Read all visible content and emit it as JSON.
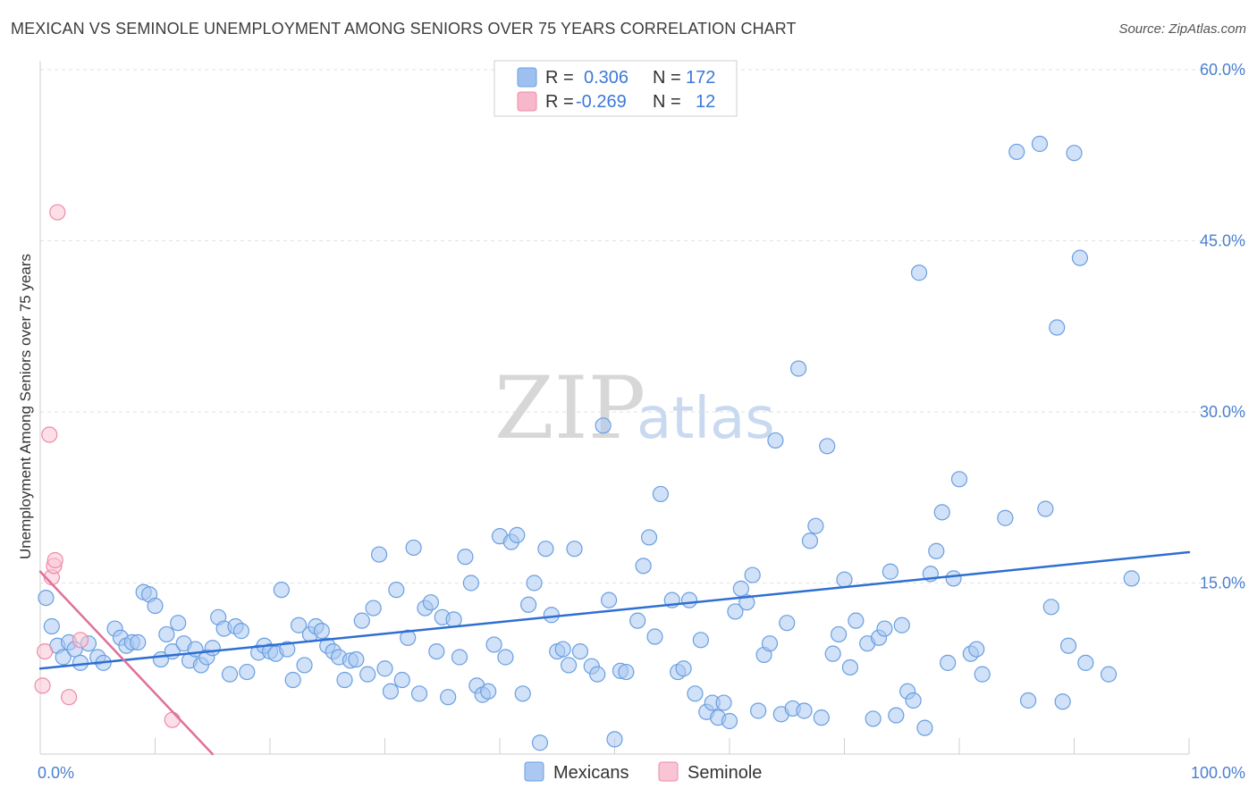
{
  "header": {
    "title": "MEXICAN VS SEMINOLE UNEMPLOYMENT AMONG SENIORS OVER 75 YEARS CORRELATION CHART",
    "source": "Source: ZipAtlas.com"
  },
  "watermark": {
    "zip": "ZIP",
    "atlas": "atlas"
  },
  "legend_box": {
    "rows": [
      {
        "r_label": "R =",
        "r_value": "0.306",
        "n_label": "N =",
        "n_value": "172",
        "color": "#9dc0f0"
      },
      {
        "r_label": "R =",
        "r_value": "-0.269",
        "n_label": "N =",
        "n_value": "12",
        "color": "#f7b8cb"
      }
    ]
  },
  "colors": {
    "mexicans_fill": "#aac8f2",
    "mexicans_stroke": "#6a9fe0",
    "mexicans_line": "#2e6fd1",
    "seminole_fill": "#f9c4d4",
    "seminole_stroke": "#ee8aa8",
    "seminole_line": "#e0709a"
  },
  "chart_data": {
    "type": "scatter",
    "title": "MEXICAN VS SEMINOLE UNEMPLOYMENT AMONG SENIORS OVER 75 YEARS CORRELATION CHART",
    "xlabel": "",
    "ylabel": "Unemployment Among Seniors over 75 years",
    "xlim": [
      0,
      100
    ],
    "ylim": [
      0,
      60
    ],
    "x_tick_labels": [
      "0.0%",
      "100.0%"
    ],
    "y_ticks": [
      15,
      30,
      45,
      60
    ],
    "y_tick_labels": [
      "15.0%",
      "30.0%",
      "45.0%",
      "60.0%"
    ],
    "grid": true,
    "legend_position": "bottom-center",
    "series": [
      {
        "name": "Mexicans",
        "trend": {
          "x": [
            0,
            100
          ],
          "y": [
            7.5,
            17.7
          ]
        },
        "points": [
          [
            0.5,
            13.7
          ],
          [
            1,
            11.2
          ],
          [
            1.5,
            9.5
          ],
          [
            2,
            8.5
          ],
          [
            2.5,
            9.8
          ],
          [
            3,
            9.2
          ],
          [
            3.5,
            8
          ],
          [
            4.2,
            9.7
          ],
          [
            5,
            8.5
          ],
          [
            5.5,
            8
          ],
          [
            6.5,
            11
          ],
          [
            7,
            10.2
          ],
          [
            7.5,
            9.5
          ],
          [
            8,
            9.8
          ],
          [
            8.5,
            9.8
          ],
          [
            9,
            14.2
          ],
          [
            9.5,
            14
          ],
          [
            10,
            13
          ],
          [
            10.5,
            8.3
          ],
          [
            11,
            10.5
          ],
          [
            11.5,
            9
          ],
          [
            12,
            11.5
          ],
          [
            12.5,
            9.7
          ],
          [
            13,
            8.2
          ],
          [
            13.5,
            9.2
          ],
          [
            14,
            7.8
          ],
          [
            14.5,
            8.5
          ],
          [
            15,
            9.3
          ],
          [
            15.5,
            12
          ],
          [
            16,
            11
          ],
          [
            16.5,
            7
          ],
          [
            17,
            11.2
          ],
          [
            17.5,
            10.8
          ],
          [
            18,
            7.2
          ],
          [
            19,
            8.9
          ],
          [
            19.5,
            9.5
          ],
          [
            20,
            9
          ],
          [
            20.5,
            8.8
          ],
          [
            21,
            14.4
          ],
          [
            21.5,
            9.2
          ],
          [
            22,
            6.5
          ],
          [
            22.5,
            11.3
          ],
          [
            23,
            7.8
          ],
          [
            23.5,
            10.5
          ],
          [
            24,
            11.2
          ],
          [
            24.5,
            10.8
          ],
          [
            25,
            9.5
          ],
          [
            25.5,
            9
          ],
          [
            26,
            8.5
          ],
          [
            26.5,
            6.5
          ],
          [
            27,
            8.2
          ],
          [
            27.5,
            8.3
          ],
          [
            28,
            11.7
          ],
          [
            28.5,
            7
          ],
          [
            29,
            12.8
          ],
          [
            29.5,
            17.5
          ],
          [
            30,
            7.5
          ],
          [
            30.5,
            5.5
          ],
          [
            31,
            14.4
          ],
          [
            31.5,
            6.5
          ],
          [
            32,
            10.2
          ],
          [
            32.5,
            18.1
          ],
          [
            33,
            5.3
          ],
          [
            33.5,
            12.8
          ],
          [
            34,
            13.3
          ],
          [
            34.5,
            9
          ],
          [
            35,
            12
          ],
          [
            35.5,
            5
          ],
          [
            36,
            11.8
          ],
          [
            36.5,
            8.5
          ],
          [
            37,
            17.3
          ],
          [
            37.5,
            15
          ],
          [
            38,
            6
          ],
          [
            38.5,
            5.2
          ],
          [
            39,
            5.5
          ],
          [
            39.5,
            9.6
          ],
          [
            40,
            19.1
          ],
          [
            40.5,
            8.5
          ],
          [
            41,
            18.6
          ],
          [
            41.5,
            19.2
          ],
          [
            42,
            5.3
          ],
          [
            42.5,
            13.1
          ],
          [
            43,
            15
          ],
          [
            43.5,
            1
          ],
          [
            44,
            18
          ],
          [
            44.5,
            12.2
          ],
          [
            45,
            9
          ],
          [
            45.5,
            9.2
          ],
          [
            46,
            7.8
          ],
          [
            46.5,
            18
          ],
          [
            47,
            9
          ],
          [
            48,
            7.7
          ],
          [
            48.5,
            7
          ],
          [
            49,
            28.8
          ],
          [
            49.5,
            13.5
          ],
          [
            50,
            1.3
          ],
          [
            50.5,
            7.3
          ],
          [
            51,
            7.2
          ],
          [
            52,
            11.7
          ],
          [
            52.5,
            16.5
          ],
          [
            53,
            19
          ],
          [
            53.5,
            10.3
          ],
          [
            54,
            22.8
          ],
          [
            55,
            13.5
          ],
          [
            55.5,
            7.2
          ],
          [
            56,
            7.5
          ],
          [
            56.5,
            13.5
          ],
          [
            57,
            5.3
          ],
          [
            57.5,
            10
          ],
          [
            58,
            3.7
          ],
          [
            58.5,
            4.5
          ],
          [
            59,
            3.2
          ],
          [
            59.5,
            4.5
          ],
          [
            60,
            2.9
          ],
          [
            60.5,
            12.5
          ],
          [
            61,
            14.5
          ],
          [
            61.5,
            13.3
          ],
          [
            62,
            15.7
          ],
          [
            62.5,
            3.8
          ],
          [
            63,
            8.7
          ],
          [
            63.5,
            9.7
          ],
          [
            64,
            27.5
          ],
          [
            64.5,
            3.5
          ],
          [
            65,
            11.5
          ],
          [
            65.5,
            4
          ],
          [
            66,
            33.8
          ],
          [
            66.5,
            3.8
          ],
          [
            67,
            18.7
          ],
          [
            67.5,
            20
          ],
          [
            68,
            3.2
          ],
          [
            68.5,
            27
          ],
          [
            69,
            8.8
          ],
          [
            69.5,
            10.5
          ],
          [
            70,
            15.3
          ],
          [
            70.5,
            7.6
          ],
          [
            71,
            11.7
          ],
          [
            72,
            9.7
          ],
          [
            72.5,
            3.1
          ],
          [
            73,
            10.2
          ],
          [
            73.5,
            11
          ],
          [
            74,
            16
          ],
          [
            74.5,
            3.4
          ],
          [
            75,
            11.3
          ],
          [
            75.5,
            5.5
          ],
          [
            76,
            4.7
          ],
          [
            76.5,
            42.2
          ],
          [
            77,
            2.3
          ],
          [
            77.5,
            15.8
          ],
          [
            78,
            17.8
          ],
          [
            78.5,
            21.2
          ],
          [
            79,
            8
          ],
          [
            79.5,
            15.4
          ],
          [
            80,
            24.1
          ],
          [
            81,
            8.8
          ],
          [
            81.5,
            9.2
          ],
          [
            82,
            7
          ],
          [
            84,
            20.7
          ],
          [
            85,
            52.8
          ],
          [
            86,
            4.7
          ],
          [
            87,
            53.5
          ],
          [
            87.5,
            21.5
          ],
          [
            88,
            12.9
          ],
          [
            88.5,
            37.4
          ],
          [
            89,
            4.6
          ],
          [
            89.5,
            9.5
          ],
          [
            90,
            52.7
          ],
          [
            90.5,
            43.5
          ],
          [
            91,
            8
          ],
          [
            93,
            7
          ],
          [
            95,
            15.4
          ]
        ]
      },
      {
        "name": "Seminole",
        "trend": {
          "x": [
            0,
            15
          ],
          "y": [
            16,
            0
          ]
        },
        "points": [
          [
            0.2,
            6
          ],
          [
            0.4,
            9
          ],
          [
            0.8,
            28
          ],
          [
            1.0,
            15.5
          ],
          [
            1.2,
            16.5
          ],
          [
            1.3,
            17
          ],
          [
            1.5,
            47.5
          ],
          [
            2.5,
            5
          ],
          [
            3.5,
            10
          ],
          [
            11.5,
            3
          ]
        ]
      }
    ]
  }
}
